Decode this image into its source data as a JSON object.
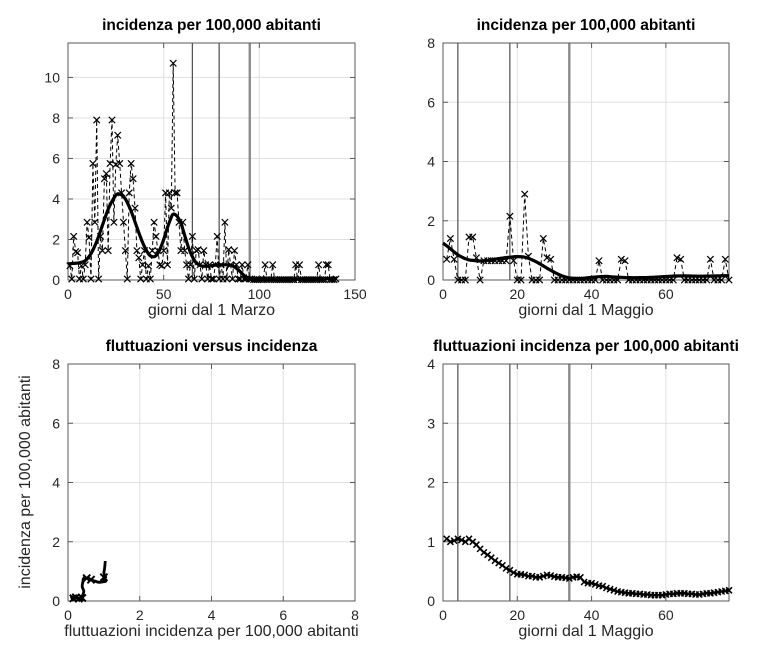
{
  "figure": {
    "background": "#ffffff",
    "colors": {
      "data": "#000000",
      "grid": "#e0e0e0",
      "box": "#595959",
      "tick_label": "#262626",
      "event_thin": "#4d4d4d",
      "event_thick": "#8c8c8c"
    }
  },
  "chart_data": [
    {
      "name": "incidence-march",
      "type": "line",
      "title": "incidenza per 100,000 abitanti",
      "xlabel": "giorni dal 1 Marzo",
      "ylabel": "",
      "xlim": [
        0,
        150
      ],
      "ylim": [
        0,
        11.7
      ],
      "xticks": [
        0,
        50,
        100,
        150
      ],
      "yticks": [
        0,
        2,
        4,
        6,
        8,
        10
      ],
      "grid": true,
      "vlines": [
        {
          "x": 65,
          "w": "thin"
        },
        {
          "x": 79,
          "w": "thin"
        },
        {
          "x": 95,
          "w": "thick"
        }
      ],
      "series": [
        {
          "name": "daily-incidence",
          "style": "dashed-x",
          "x_start": 1,
          "values": [
            0.7,
            0.05,
            2.15,
            1.4,
            1.35,
            0.05,
            0.7,
            0.05,
            0.75,
            2.85,
            2.1,
            0.05,
            5.75,
            2.85,
            7.9,
            0.05,
            2.15,
            1.45,
            5.0,
            5.25,
            1.45,
            5.75,
            7.9,
            2.85,
            5.7,
            7.15,
            5.75,
            4.3,
            2.85,
            1.45,
            0.05,
            4.3,
            5.75,
            5.0,
            3.55,
            1.45,
            1.1,
            0.05,
            0.75,
            1.45,
            0.05,
            0.7,
            0.05,
            1.45,
            2.85,
            2.15,
            1.45,
            0.75,
            0.7,
            1.45,
            4.3,
            0.75,
            4.3,
            3.55,
            10.7,
            4.3,
            4.3,
            2.85,
            1.45,
            2.85,
            1.45,
            0.75,
            0.05,
            0.75,
            2.15,
            0.05,
            1.45,
            1.5,
            0.75,
            0.05,
            1.45,
            0.75,
            0.05,
            0.75,
            0.05,
            0.05,
            0.75,
            2.15,
            0.05,
            0.75,
            0.05,
            2.85,
            0.05,
            1.5,
            0.75,
            0.05,
            1.45,
            0.75,
            0.05,
            0.05,
            0.75,
            0.05,
            0.05,
            0.75,
            0.05,
            0.05,
            0.02,
            0.02,
            0.02,
            0.02,
            0.02,
            0.02,
            0.75,
            0.02,
            0.02,
            0.02,
            0.75,
            0.02,
            0.02,
            0.02,
            0.02,
            0.02,
            0.02,
            0.02,
            0.02,
            0.02,
            0.02,
            0.02,
            0.75,
            0.02,
            0.75,
            0.02,
            0.02,
            0.02,
            0.02,
            0.02,
            0.02,
            0.02,
            0.02,
            0.02,
            0.75,
            0.02,
            0.02,
            0.02,
            0.75,
            0.75,
            0.02,
            0.02,
            0.02,
            0.05
          ]
        },
        {
          "name": "smoothed-incidence",
          "style": "thick",
          "points": [
            [
              0,
              0.8
            ],
            [
              3,
              0.82
            ],
            [
              6,
              0.85
            ],
            [
              9,
              0.95
            ],
            [
              12,
              1.3
            ],
            [
              15,
              1.9
            ],
            [
              18,
              2.7
            ],
            [
              21,
              3.5
            ],
            [
              24,
              4.05
            ],
            [
              26,
              4.25
            ],
            [
              28,
              4.2
            ],
            [
              30,
              4.0
            ],
            [
              33,
              3.4
            ],
            [
              36,
              2.6
            ],
            [
              39,
              1.85
            ],
            [
              42,
              1.3
            ],
            [
              44,
              1.15
            ],
            [
              46,
              1.2
            ],
            [
              48,
              1.5
            ],
            [
              50,
              2.0
            ],
            [
              52,
              2.6
            ],
            [
              54,
              3.1
            ],
            [
              55,
              3.25
            ],
            [
              57,
              3.15
            ],
            [
              59,
              2.8
            ],
            [
              61,
              2.2
            ],
            [
              63,
              1.6
            ],
            [
              65,
              1.15
            ],
            [
              67,
              0.85
            ],
            [
              69,
              0.72
            ],
            [
              71,
              0.68
            ],
            [
              74,
              0.7
            ],
            [
              77,
              0.73
            ],
            [
              80,
              0.75
            ],
            [
              83,
              0.75
            ],
            [
              85,
              0.73
            ],
            [
              87,
              0.65
            ],
            [
              89,
              0.5
            ],
            [
              91,
              0.32
            ],
            [
              93,
              0.15
            ],
            [
              95,
              0.06
            ],
            [
              97,
              0.03
            ],
            [
              100,
              0.03
            ],
            [
              110,
              0.03
            ],
            [
              120,
              0.04
            ],
            [
              130,
              0.05
            ],
            [
              140,
              0.07
            ]
          ]
        }
      ]
    },
    {
      "name": "incidence-may",
      "type": "line",
      "title": "incidenza per 100,000 abitanti",
      "xlabel": "giorni dal 1 Maggio",
      "ylabel": "",
      "xlim": [
        0,
        77
      ],
      "ylim": [
        0,
        8
      ],
      "xticks": [
        0,
        20,
        40,
        60
      ],
      "yticks": [
        0,
        2,
        4,
        6,
        8
      ],
      "grid": true,
      "vlines": [
        {
          "x": 4,
          "w": "thin"
        },
        {
          "x": 18,
          "w": "thin"
        },
        {
          "x": 34,
          "w": "thick"
        }
      ],
      "series": [
        {
          "name": "daily-incidence",
          "style": "dashed-x",
          "x_start": 1,
          "values": [
            0.7,
            1.4,
            0.7,
            0.0,
            0.0,
            0.0,
            1.45,
            1.45,
            0.75,
            0.0,
            0.65,
            0.65,
            0.65,
            0.65,
            0.65,
            0.65,
            0.65,
            2.15,
            0.65,
            0.0,
            0.0,
            2.9,
            0.8,
            0.0,
            0.0,
            0.0,
            1.4,
            0.75,
            0.7,
            0.0,
            0.0,
            0.0,
            0.0,
            0.0,
            0.0,
            0.0,
            0.0,
            0.0,
            0.0,
            0.0,
            0.0,
            0.65,
            0.0,
            0.0,
            0.0,
            0.0,
            0.0,
            0.7,
            0.65,
            0.0,
            0.0,
            0.0,
            0.0,
            0.0,
            0.0,
            0.0,
            0.0,
            0.0,
            0.0,
            0.0,
            0.0,
            0.0,
            0.75,
            0.7,
            0.0,
            0.0,
            0.0,
            0.0,
            0.0,
            0.0,
            0.0,
            0.7,
            0.0,
            0.0,
            0.0,
            0.7,
            0.0
          ]
        },
        {
          "name": "smoothed-incidence",
          "style": "thick",
          "points": [
            [
              0,
              1.25
            ],
            [
              1,
              1.15
            ],
            [
              2,
              1.05
            ],
            [
              3,
              0.95
            ],
            [
              4,
              0.85
            ],
            [
              5,
              0.78
            ],
            [
              6,
              0.72
            ],
            [
              7,
              0.68
            ],
            [
              8,
              0.66
            ],
            [
              10,
              0.64
            ],
            [
              12,
              0.66
            ],
            [
              14,
              0.7
            ],
            [
              16,
              0.74
            ],
            [
              18,
              0.77
            ],
            [
              20,
              0.79
            ],
            [
              22,
              0.77
            ],
            [
              24,
              0.68
            ],
            [
              26,
              0.55
            ],
            [
              28,
              0.4
            ],
            [
              30,
              0.26
            ],
            [
              32,
              0.14
            ],
            [
              34,
              0.07
            ],
            [
              36,
              0.05
            ],
            [
              38,
              0.06
            ],
            [
              40,
              0.09
            ],
            [
              42,
              0.11
            ],
            [
              44,
              0.12
            ],
            [
              46,
              0.1
            ],
            [
              48,
              0.09
            ],
            [
              50,
              0.08
            ],
            [
              53,
              0.08
            ],
            [
              56,
              0.09
            ],
            [
              59,
              0.11
            ],
            [
              62,
              0.13
            ],
            [
              65,
              0.14
            ],
            [
              68,
              0.13
            ],
            [
              71,
              0.13
            ],
            [
              74,
              0.14
            ],
            [
              77,
              0.15
            ]
          ]
        }
      ]
    },
    {
      "name": "fluctuations-vs-incidence",
      "type": "line",
      "title": "fluttuazioni versus incidenza",
      "xlabel": "fluttuazioni incidenza per 100,000 abitanti",
      "ylabel": "incidenza per 100,000 abitanti",
      "xlim": [
        0,
        8
      ],
      "ylim": [
        0,
        8
      ],
      "xticks": [
        0,
        2,
        4,
        6,
        8
      ],
      "yticks": [
        0,
        2,
        4,
        6,
        8
      ],
      "grid": true,
      "vlines": [],
      "series": [
        {
          "name": "phase-trajectory",
          "style": "thick-x",
          "points": [
            [
              1.04,
              1.35
            ],
            [
              1.02,
              1.1
            ],
            [
              1.0,
              0.95
            ],
            [
              1.03,
              0.85
            ],
            [
              1.05,
              0.8
            ],
            [
              1.0,
              0.7
            ],
            [
              1.05,
              0.66
            ],
            [
              1.0,
              0.65
            ],
            [
              0.95,
              0.64
            ],
            [
              0.88,
              0.63
            ],
            [
              0.82,
              0.64
            ],
            [
              0.78,
              0.66
            ],
            [
              0.73,
              0.68
            ],
            [
              0.68,
              0.7
            ],
            [
              0.64,
              0.72
            ],
            [
              0.6,
              0.74
            ],
            [
              0.55,
              0.76
            ],
            [
              0.52,
              0.77
            ],
            [
              0.48,
              0.78
            ],
            [
              0.45,
              0.79
            ],
            [
              0.45,
              0.79
            ],
            [
              0.44,
              0.77
            ],
            [
              0.42,
              0.72
            ],
            [
              0.42,
              0.68
            ],
            [
              0.4,
              0.55
            ],
            [
              0.4,
              0.47
            ],
            [
              0.42,
              0.4
            ],
            [
              0.44,
              0.33
            ],
            [
              0.43,
              0.26
            ],
            [
              0.41,
              0.2
            ],
            [
              0.4,
              0.14
            ],
            [
              0.4,
              0.1
            ],
            [
              0.39,
              0.08
            ],
            [
              0.38,
              0.07
            ],
            [
              0.4,
              0.05
            ],
            [
              0.41,
              0.05
            ],
            [
              0.4,
              0.05
            ],
            [
              0.32,
              0.06
            ],
            [
              0.3,
              0.08
            ],
            [
              0.3,
              0.09
            ],
            [
              0.28,
              0.1
            ],
            [
              0.26,
              0.11
            ],
            [
              0.25,
              0.11
            ],
            [
              0.22,
              0.12
            ],
            [
              0.2,
              0.1
            ],
            [
              0.18,
              0.1
            ],
            [
              0.16,
              0.09
            ],
            [
              0.15,
              0.09
            ],
            [
              0.14,
              0.08
            ],
            [
              0.13,
              0.08
            ],
            [
              0.13,
              0.08
            ],
            [
              0.12,
              0.08
            ],
            [
              0.12,
              0.09
            ],
            [
              0.11,
              0.1
            ],
            [
              0.11,
              0.11
            ],
            [
              0.1,
              0.12
            ],
            [
              0.1,
              0.13
            ],
            [
              0.12,
              0.13
            ],
            [
              0.14,
              0.14
            ],
            [
              0.16,
              0.15
            ],
            [
              0.18,
              0.15
            ]
          ],
          "markers": [
            [
              0.15,
              0.09
            ],
            [
              0.22,
              0.12
            ],
            [
              0.3,
              0.08
            ],
            [
              0.4,
              0.1
            ],
            [
              0.52,
              0.77
            ],
            [
              0.64,
              0.72
            ],
            [
              1.0,
              0.8
            ]
          ]
        }
      ]
    },
    {
      "name": "fluctuations-may",
      "type": "line",
      "title": "fluttuazioni incidenza per 100,000 abitanti",
      "xlabel": "giorni dal 1 Maggio",
      "ylabel": "",
      "xlim": [
        0,
        77
      ],
      "ylim": [
        0,
        4
      ],
      "xticks": [
        0,
        20,
        40,
        60
      ],
      "yticks": [
        0,
        1,
        2,
        3,
        4
      ],
      "grid": true,
      "vlines": [
        {
          "x": 4,
          "w": "thin"
        },
        {
          "x": 18,
          "w": "thin"
        },
        {
          "x": 34,
          "w": "thick"
        }
      ],
      "series": [
        {
          "name": "daily-fluctuations",
          "style": "solid-x",
          "x_start": 1,
          "values": [
            1.05,
            1.0,
            1.02,
            1.05,
            1.03,
            1.0,
            1.05,
            1.0,
            0.95,
            0.88,
            0.82,
            0.78,
            0.73,
            0.68,
            0.64,
            0.6,
            0.55,
            0.52,
            0.48,
            0.45,
            0.45,
            0.44,
            0.42,
            0.42,
            0.4,
            0.4,
            0.42,
            0.44,
            0.43,
            0.41,
            0.4,
            0.4,
            0.39,
            0.38,
            0.4,
            0.41,
            0.4,
            0.32,
            0.3,
            0.3,
            0.28,
            0.26,
            0.25,
            0.22,
            0.2,
            0.18,
            0.16,
            0.15,
            0.14,
            0.13,
            0.13,
            0.12,
            0.12,
            0.11,
            0.11,
            0.1,
            0.1,
            0.1,
            0.1,
            0.11,
            0.12,
            0.12,
            0.13,
            0.13,
            0.13,
            0.12,
            0.12,
            0.11,
            0.11,
            0.12,
            0.13,
            0.13,
            0.14,
            0.15,
            0.16,
            0.17,
            0.18
          ]
        }
      ]
    }
  ]
}
